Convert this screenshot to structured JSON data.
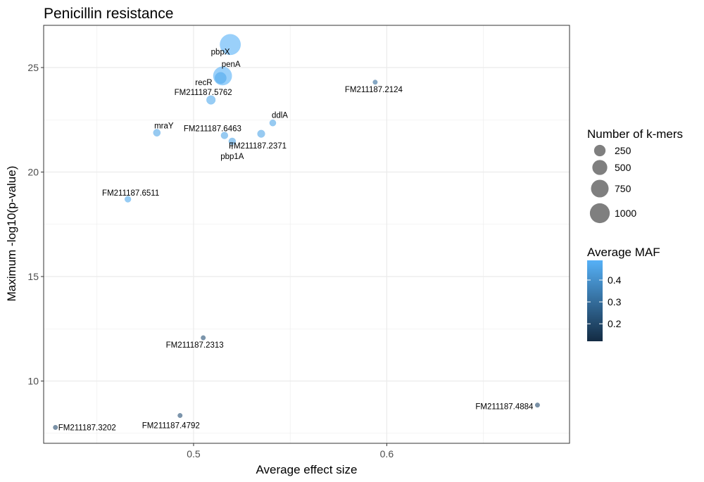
{
  "chart_data": {
    "type": "scatter",
    "title": "Penicillin resistance",
    "xlabel": "Average effect size",
    "ylabel": "Maximum -log10(p-value)",
    "xlim": [
      0.4224,
      0.6946
    ],
    "ylim": [
      7.02,
      27.02
    ],
    "x_ticks": [
      0.5,
      0.6
    ],
    "x_minor_ticks": [
      0.45,
      0.55,
      0.65
    ],
    "y_ticks": [
      10,
      15,
      20,
      25
    ],
    "y_minor_ticks": [
      7.5,
      12.5,
      17.5,
      22.5
    ],
    "grid": true,
    "theme": "bw",
    "size_legend": {
      "title": "Number of k-mers",
      "breaks": [
        250,
        500,
        750,
        1000
      ]
    },
    "color_legend": {
      "title": "Average MAF",
      "breaks": [
        0.2,
        0.3,
        0.4
      ],
      "range": [
        0.12,
        0.49
      ],
      "low_color": "#132b43",
      "high_color": "#56b1f7"
    },
    "points": [
      {
        "label": "pbpX",
        "x": 0.519,
        "y": 26.1,
        "kmers": 1100,
        "maf": 0.49
      },
      {
        "label": "penA",
        "x": 0.515,
        "y": 24.6,
        "kmers": 850,
        "maf": 0.49
      },
      {
        "label": "recR",
        "x": 0.514,
        "y": 24.5,
        "kmers": 250,
        "maf": 0.47
      },
      {
        "label": "FM211187.2124",
        "x": 0.594,
        "y": 24.3,
        "kmers": 8,
        "maf": 0.3
      },
      {
        "label": "FM211187.5762",
        "x": 0.509,
        "y": 23.45,
        "kmers": 120,
        "maf": 0.47
      },
      {
        "label": "ddlA",
        "x": 0.541,
        "y": 22.35,
        "kmers": 40,
        "maf": 0.46
      },
      {
        "label": "mraY",
        "x": 0.481,
        "y": 21.88,
        "kmers": 60,
        "maf": 0.46
      },
      {
        "label": "FM211187.2371",
        "x": 0.535,
        "y": 21.83,
        "kmers": 70,
        "maf": 0.46
      },
      {
        "label": "FM211187.6463",
        "x": 0.516,
        "y": 21.75,
        "kmers": 55,
        "maf": 0.46
      },
      {
        "label": "pbp1A",
        "x": 0.52,
        "y": 21.47,
        "kmers": 55,
        "maf": 0.46
      },
      {
        "label": "FM211187.6511",
        "x": 0.466,
        "y": 18.7,
        "kmers": 35,
        "maf": 0.47
      },
      {
        "label": "FM211187.2313",
        "x": 0.505,
        "y": 12.07,
        "kmers": 8,
        "maf": 0.22
      },
      {
        "label": "FM211187.4884",
        "x": 0.678,
        "y": 8.85,
        "kmers": 8,
        "maf": 0.2
      },
      {
        "label": "FM211187.4792",
        "x": 0.493,
        "y": 8.35,
        "kmers": 8,
        "maf": 0.22
      },
      {
        "label": "FM211187.3202",
        "x": 0.4285,
        "y": 7.78,
        "kmers": 8,
        "maf": 0.2
      }
    ]
  }
}
